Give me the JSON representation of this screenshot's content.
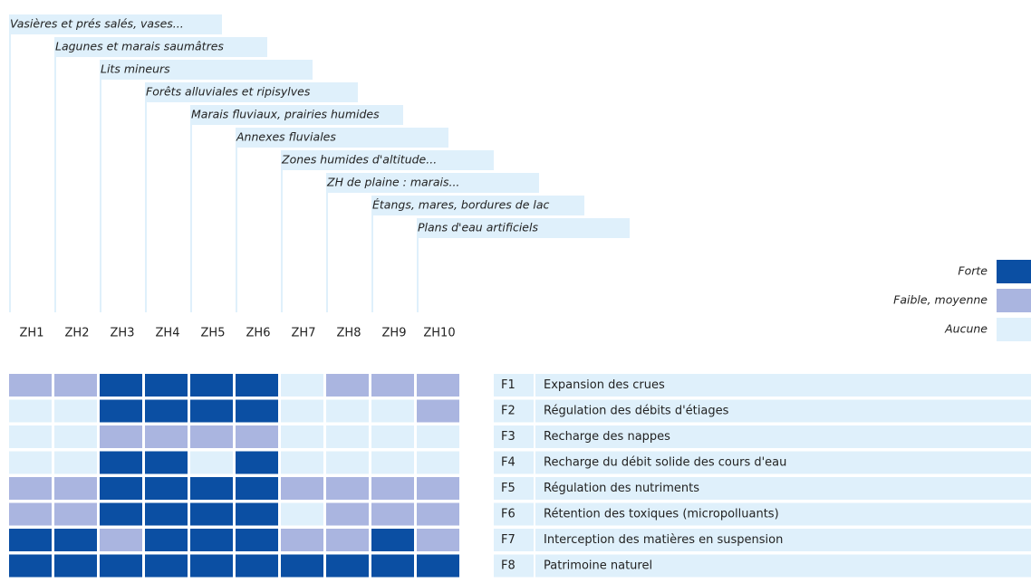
{
  "zones": [
    {
      "code": "ZH1",
      "label": "Vasières et prés salés, vases..."
    },
    {
      "code": "ZH2",
      "label": "Lagunes et marais saumâtres"
    },
    {
      "code": "ZH3",
      "label": "Lits mineurs"
    },
    {
      "code": "ZH4",
      "label": "Forêts alluviales et ripisylves"
    },
    {
      "code": "ZH5",
      "label": "Marais fluviaux, prairies humides"
    },
    {
      "code": "ZH6",
      "label": "Annexes fluviales"
    },
    {
      "code": "ZH7",
      "label": "Zones humides d'altitude..."
    },
    {
      "code": "ZH8",
      "label": "ZH de plaine : marais..."
    },
    {
      "code": "ZH9",
      "label": "Étangs, mares, bordures de lac"
    },
    {
      "code": "ZH10",
      "label": "Plans d'eau artificiels"
    }
  ],
  "legend": [
    {
      "label": "Aucune",
      "color": "#dff0fb"
    },
    {
      "label": "Faible, moyenne",
      "color": "#aab5e0"
    },
    {
      "label": "Forte",
      "color": "#0b4fa3"
    }
  ],
  "functions": [
    {
      "code": "F1",
      "label": "Expansion des crues",
      "levels": [
        1,
        1,
        2,
        2,
        2,
        2,
        0,
        1,
        1,
        1
      ]
    },
    {
      "code": "F2",
      "label": "Régulation des débits d'étiages",
      "levels": [
        0,
        0,
        2,
        2,
        2,
        2,
        0,
        0,
        0,
        1
      ]
    },
    {
      "code": "F3",
      "label": "Recharge des nappes",
      "levels": [
        0,
        0,
        1,
        1,
        1,
        1,
        0,
        0,
        0,
        0
      ]
    },
    {
      "code": "F4",
      "label": "Recharge du débit solide des cours d'eau",
      "levels": [
        0,
        0,
        2,
        2,
        0,
        2,
        0,
        0,
        0,
        0
      ]
    },
    {
      "code": "F5",
      "label": "Régulation des nutriments",
      "levels": [
        1,
        1,
        2,
        2,
        2,
        2,
        1,
        1,
        1,
        1
      ]
    },
    {
      "code": "F6",
      "label": "Rétention des toxiques (micropolluants)",
      "levels": [
        1,
        1,
        2,
        2,
        2,
        2,
        0,
        1,
        1,
        1
      ]
    },
    {
      "code": "F7",
      "label": "Interception des matières en suspension",
      "levels": [
        2,
        2,
        1,
        2,
        2,
        2,
        1,
        1,
        2,
        1
      ]
    },
    {
      "code": "F8",
      "label": "Patrimoine naturel",
      "levels": [
        2,
        2,
        2,
        2,
        2,
        2,
        2,
        2,
        2,
        2
      ]
    }
  ]
}
